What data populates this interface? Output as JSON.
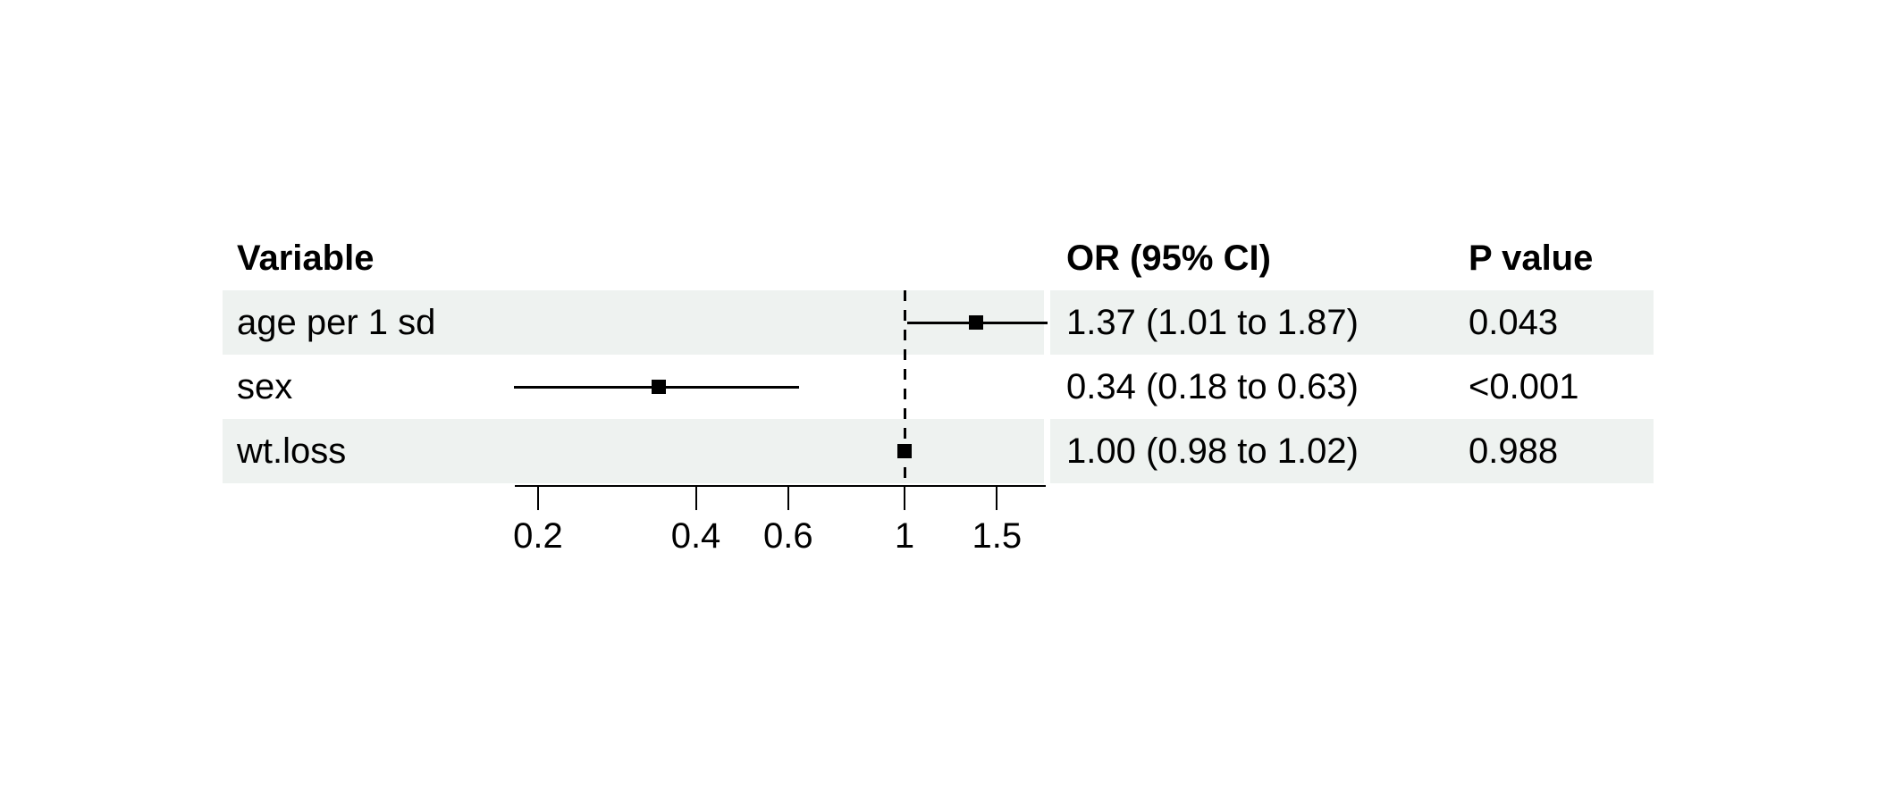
{
  "figure": {
    "background": "#ffffff",
    "stripe_color": "#eef2f0",
    "text_color": "#000000",
    "line_color": "#000000"
  },
  "chart_data": {
    "type": "forest",
    "scale": "log",
    "grid": false,
    "legend": null,
    "columns": {
      "variable": "Variable",
      "or_ci": "OR (95% CI)",
      "p": "P value"
    },
    "ref_line": 1,
    "x_ticks": [
      0.2,
      0.4,
      0.6,
      1,
      1.5
    ],
    "x_tick_labels": [
      "0.2",
      "0.4",
      "0.6",
      "1",
      "1.5"
    ],
    "xlim": [
      0.16,
      1.9
    ],
    "rows": [
      {
        "variable": "age per 1 sd",
        "or": 1.37,
        "lo": 1.01,
        "hi": 1.87,
        "or_ci": "1.37 (1.01 to 1.87)",
        "p": "0.043",
        "striped": true
      },
      {
        "variable": "sex",
        "or": 0.34,
        "lo": 0.18,
        "hi": 0.63,
        "or_ci": "0.34 (0.18 to 0.63)",
        "p": "<0.001",
        "striped": false
      },
      {
        "variable": "wt.loss",
        "or": 1.0,
        "lo": 0.98,
        "hi": 1.02,
        "or_ci": "1.00 (0.98 to 1.02)",
        "p": "0.988",
        "striped": true
      }
    ]
  }
}
